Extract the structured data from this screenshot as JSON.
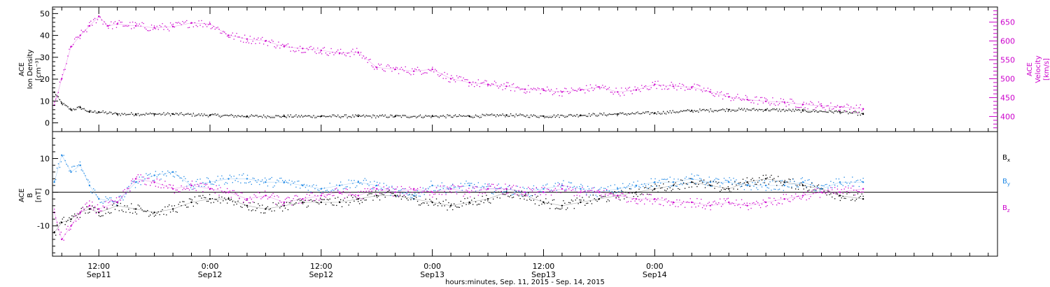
{
  "chart_data": [
    {
      "type": "scatter",
      "panel": "top",
      "ylabel_left": [
        "ACE",
        "Ion Density",
        "[cm⁻³]"
      ],
      "ylabel_right": [
        "ACE",
        "Velocity",
        "[km/s]"
      ],
      "ylim_left": [
        -4,
        53
      ],
      "yticks_left": [
        0,
        10,
        20,
        30,
        40,
        50
      ],
      "ylim_right": [
        360,
        690
      ],
      "yticks_right": [
        400,
        450,
        500,
        550,
        600,
        650
      ],
      "series": [
        {
          "color": "#000000",
          "axis": "left",
          "x": [
            7.2,
            8,
            9,
            10,
            11,
            12,
            14,
            16,
            18,
            20,
            24,
            28,
            32,
            36,
            40,
            44,
            48,
            52,
            56,
            60,
            64,
            68,
            72,
            76,
            80,
            84,
            88,
            92,
            94.5
          ],
          "y": [
            14,
            9,
            6,
            7,
            5,
            5,
            4,
            4,
            4,
            4,
            3.5,
            3,
            3,
            3,
            3,
            3,
            3,
            3,
            3.5,
            3,
            3.5,
            4,
            4.5,
            5.5,
            6,
            6,
            5.5,
            5,
            4
          ]
        },
        {
          "color": "#cc00cc",
          "axis": "right",
          "x": [
            7.2,
            8,
            9,
            10,
            11,
            12,
            13,
            14,
            16,
            18,
            20,
            22,
            24,
            26,
            28,
            30,
            32,
            34,
            36,
            38,
            40,
            42,
            44,
            46,
            48,
            50,
            52,
            54,
            56,
            58,
            60,
            62,
            64,
            66,
            68,
            70,
            72,
            74,
            76,
            78,
            80,
            82,
            84,
            86,
            88,
            90,
            92,
            94.5
          ],
          "y": [
            430,
            500,
            585,
            615,
            640,
            665,
            640,
            645,
            640,
            635,
            638,
            648,
            645,
            615,
            605,
            600,
            585,
            580,
            575,
            568,
            570,
            530,
            525,
            520,
            525,
            500,
            490,
            485,
            480,
            472,
            470,
            465,
            470,
            478,
            465,
            470,
            485,
            480,
            478,
            465,
            452,
            445,
            440,
            438,
            432,
            428,
            425,
            420
          ]
        }
      ]
    },
    {
      "type": "scatter",
      "panel": "bottom",
      "ylabel_left": [
        "ACE",
        "B",
        "[nT]"
      ],
      "ylim": [
        -19,
        18
      ],
      "yticks": [
        -10,
        0,
        10
      ],
      "zero_line": true,
      "legend": {
        "items": [
          {
            "main": "B",
            "sub": "x",
            "color": "#000000"
          },
          {
            "main": "B",
            "sub": "y",
            "color": "#1e88e5"
          },
          {
            "main": "B",
            "sub": "z",
            "color": "#cc00cc"
          }
        ]
      },
      "series": [
        {
          "color": "#000000",
          "x": [
            7.2,
            8,
            9,
            10,
            11,
            12,
            14,
            16,
            18,
            20,
            22,
            24,
            26,
            28,
            30,
            32,
            34,
            36,
            38,
            40,
            42,
            44,
            46,
            48,
            50,
            52,
            54,
            56,
            58,
            60,
            62,
            64,
            66,
            68,
            70,
            72,
            74,
            76,
            78,
            80,
            82,
            84,
            86,
            88,
            90,
            92,
            94.5
          ],
          "y": [
            -12,
            -9,
            -8,
            -6,
            -5,
            -6,
            -4,
            -5,
            -6,
            -5,
            -3,
            -2,
            -2,
            -4,
            -5,
            -4,
            -3,
            -3,
            -3,
            -2,
            -1,
            -1,
            -2,
            -3,
            -4,
            -3,
            -2,
            0,
            -1,
            -3,
            -4,
            -3,
            -2,
            -1,
            0,
            1,
            2,
            3,
            2,
            1,
            3,
            4,
            3,
            2,
            1,
            -1,
            -2
          ]
        },
        {
          "color": "#1e88e5",
          "x": [
            7.2,
            8,
            9,
            10,
            11,
            12,
            14,
            16,
            18,
            20,
            22,
            24,
            26,
            28,
            30,
            32,
            34,
            36,
            38,
            40,
            42,
            44,
            46,
            48,
            50,
            52,
            54,
            56,
            58,
            60,
            62,
            64,
            66,
            68,
            70,
            72,
            74,
            76,
            78,
            80,
            82,
            84,
            86,
            88,
            90,
            92,
            94.5
          ],
          "y": [
            3,
            11,
            6,
            8,
            2,
            -2,
            -3,
            3,
            5,
            6,
            2,
            3,
            4,
            4,
            3,
            3,
            2,
            1,
            2,
            3,
            2,
            0,
            -1,
            2,
            1,
            2,
            1,
            1,
            0,
            1,
            2,
            1,
            0,
            1,
            2,
            3,
            3,
            4,
            3,
            3,
            2,
            2,
            2,
            3,
            1,
            3,
            3
          ]
        },
        {
          "color": "#cc00cc",
          "x": [
            7.2,
            8,
            9,
            10,
            11,
            12,
            14,
            16,
            18,
            20,
            22,
            24,
            26,
            28,
            30,
            32,
            34,
            36,
            38,
            40,
            42,
            44,
            46,
            48,
            50,
            52,
            54,
            56,
            58,
            60,
            62,
            64,
            66,
            68,
            70,
            72,
            74,
            76,
            78,
            80,
            82,
            84,
            86,
            88,
            90,
            92,
            94.5
          ],
          "y": [
            -6,
            -14,
            -10,
            -6,
            -4,
            -5,
            -3,
            4,
            3,
            1,
            2,
            1,
            0,
            -2,
            -1,
            -3,
            -2,
            -1,
            0,
            -1,
            1,
            0,
            1,
            0,
            1,
            0,
            1,
            1,
            0,
            0,
            1,
            0,
            0,
            -1,
            -2,
            -2,
            -3,
            -3,
            -4,
            -3,
            -4,
            -3,
            -2,
            -1,
            0,
            0,
            1
          ]
        }
      ]
    }
  ],
  "xaxis": {
    "xlim": [
      7,
      109
    ],
    "ticks": [
      {
        "x": 12,
        "top": "12:00",
        "bottom": "Sep11"
      },
      {
        "x": 24,
        "top": "0:00",
        "bottom": "Sep12"
      },
      {
        "x": 36,
        "top": "12:00",
        "bottom": "Sep12"
      },
      {
        "x": 48,
        "top": "0:00",
        "bottom": "Sep13"
      },
      {
        "x": 60,
        "top": "12:00",
        "bottom": "Sep13"
      },
      {
        "x": 72,
        "top": "0:00",
        "bottom": "Sep14"
      }
    ],
    "title": "hours:minutes, Sep. 11, 2015 - Sep. 14, 2015"
  }
}
